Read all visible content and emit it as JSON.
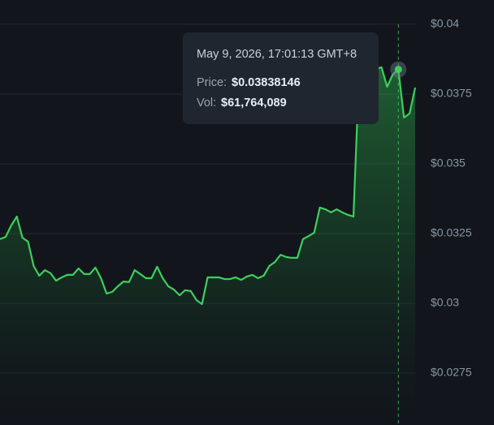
{
  "chart_data": {
    "type": "area-line",
    "values": [
      0.0323,
      0.03238,
      0.03279,
      0.03311,
      0.03235,
      0.03221,
      0.03134,
      0.03099,
      0.03119,
      0.03108,
      0.03081,
      0.03093,
      0.03102,
      0.03102,
      0.03125,
      0.03105,
      0.03105,
      0.03128,
      0.0309,
      0.03035,
      0.03041,
      0.03061,
      0.03078,
      0.03076,
      0.03119,
      0.03105,
      0.0309,
      0.0309,
      0.03131,
      0.0309,
      0.03061,
      0.03049,
      0.03029,
      0.03047,
      0.03044,
      0.03012,
      0.02997,
      0.03093,
      0.03093,
      0.03093,
      0.03087,
      0.03087,
      0.03093,
      0.03084,
      0.03096,
      0.03102,
      0.0309,
      0.03099,
      0.03134,
      0.03148,
      0.03174,
      0.03166,
      0.03163,
      0.03163,
      0.0323,
      0.03241,
      0.03253,
      0.03343,
      0.03337,
      0.03326,
      0.03337,
      0.03326,
      0.03317,
      0.03311,
      0.03826,
      0.03837,
      0.03849,
      0.0384,
      0.03846,
      0.03776,
      0.0382,
      0.03838146,
      0.03666,
      0.0368,
      0.03773
    ],
    "color": "#3ccf5c",
    "ylim": [
      0.02564,
      0.04087
    ],
    "yticks": [
      {
        "value": 0.04,
        "label": "$0.04"
      },
      {
        "value": 0.0375,
        "label": "$0.0375"
      },
      {
        "value": 0.035,
        "label": "$0.035"
      },
      {
        "value": 0.0325,
        "label": "$0.0325"
      },
      {
        "value": 0.03,
        "label": "$0.03"
      },
      {
        "value": 0.0275,
        "label": "$0.0275"
      }
    ],
    "grid": true,
    "tooltip": {
      "time": "May 9, 2026, 17:01:13 GMT+8",
      "price_label": "Price:",
      "price": {
        "value": 0.03838146,
        "label": "$0.03838146"
      },
      "vol_label": "Vol:",
      "vol": "$61,764,089"
    }
  }
}
